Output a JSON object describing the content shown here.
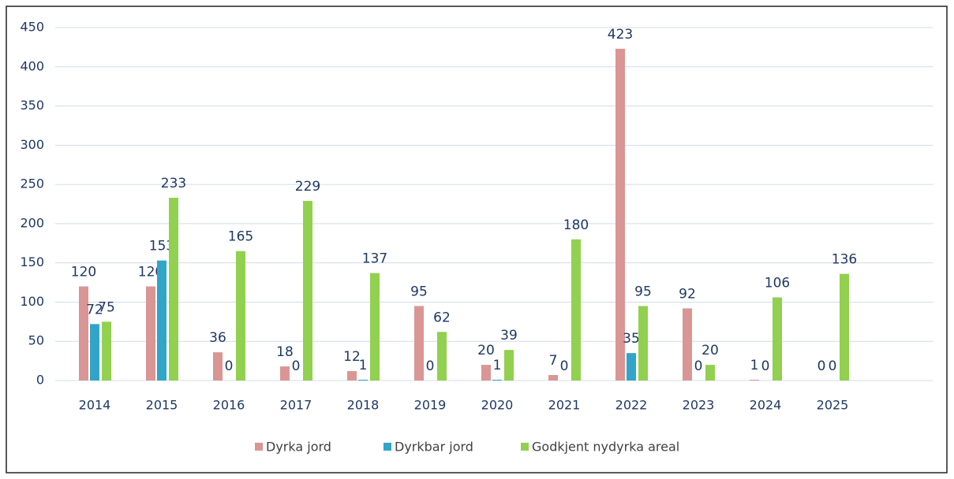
{
  "chart_data": {
    "type": "bar",
    "categories": [
      "2014",
      "2015",
      "2016",
      "2017",
      "2018",
      "2019",
      "2020",
      "2021",
      "2022",
      "2023",
      "2024",
      "2025",
      null
    ],
    "series": [
      {
        "name": "Dyrka jord",
        "color": "#d99694",
        "values": [
          120,
          120,
          36,
          18,
          12,
          95,
          20,
          7,
          423,
          92,
          1,
          0,
          null
        ]
      },
      {
        "name": "Dyrkbar jord",
        "color": "#31a5c8",
        "values": [
          72,
          153,
          0,
          0,
          1,
          0,
          1,
          0,
          35,
          0,
          0,
          0,
          null
        ]
      },
      {
        "name": "Godkjent nydyrka areal",
        "color": "#92d050",
        "values": [
          75,
          233,
          165,
          229,
          137,
          62,
          39,
          180,
          95,
          20,
          106,
          136,
          null
        ]
      }
    ],
    "ylim": [
      0,
      450
    ],
    "yticks": [
      0,
      50,
      100,
      150,
      200,
      250,
      300,
      350,
      400,
      450
    ],
    "grid": true,
    "legend": "bottom"
  }
}
